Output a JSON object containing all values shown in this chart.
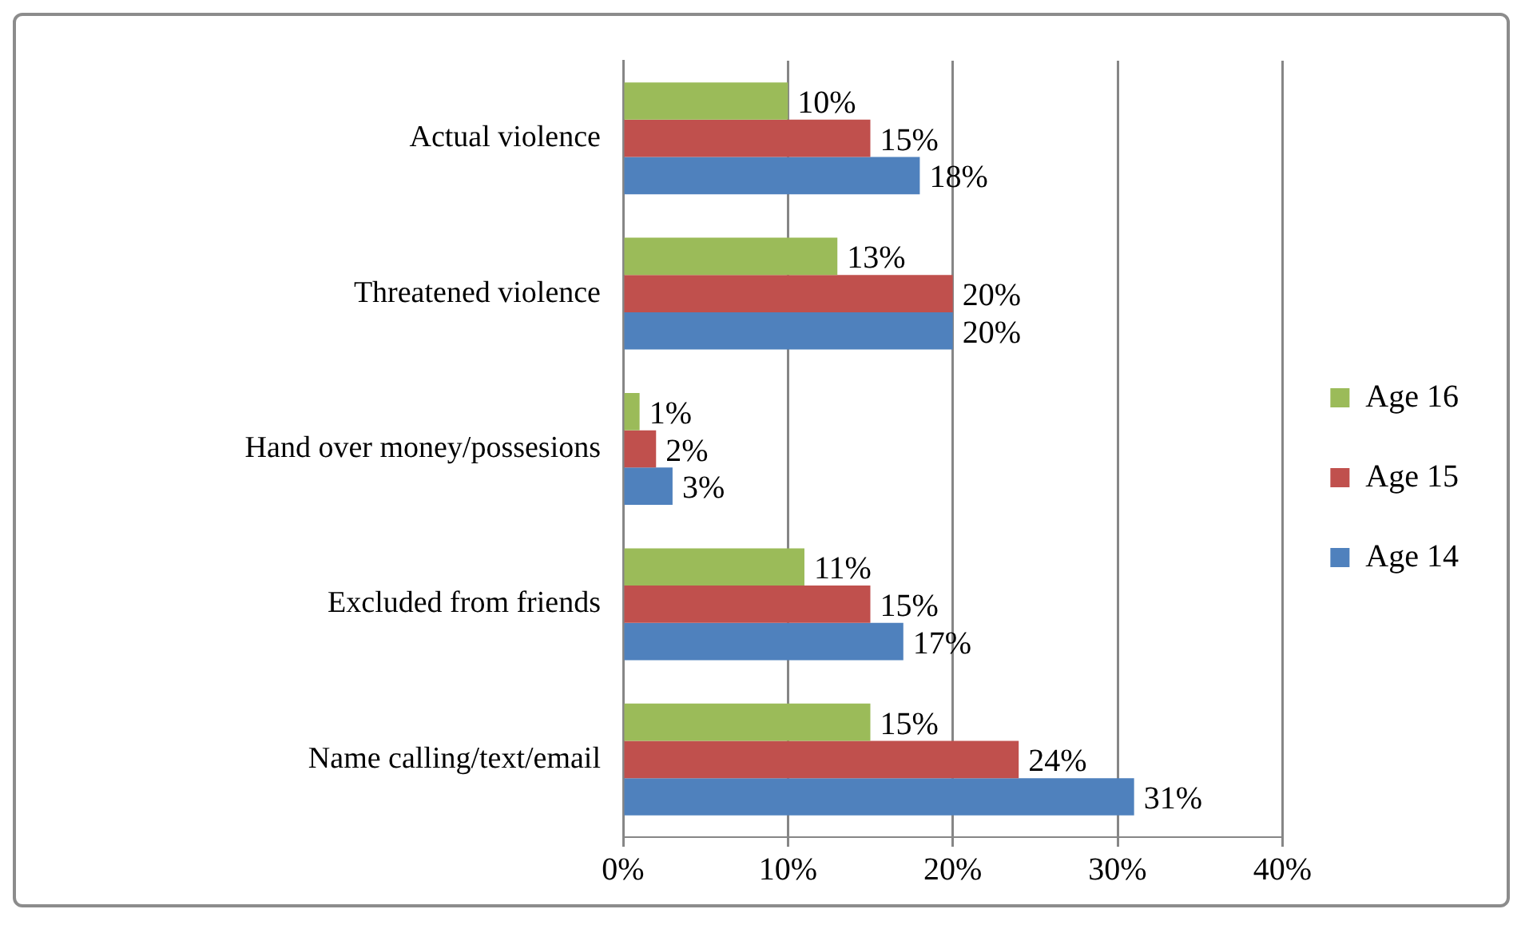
{
  "chart_data": {
    "type": "bar",
    "orientation": "horizontal",
    "categories": [
      "Actual violence",
      "Threatened violence",
      "Hand over money/possesions",
      "Excluded from friends",
      "Name calling/text/email"
    ],
    "series": [
      {
        "name": "Age 16",
        "color": "#9bbb59",
        "values": [
          10,
          13,
          1,
          11,
          15
        ],
        "value_labels": [
          "10%",
          "13%",
          "1%",
          "11%",
          "15%"
        ]
      },
      {
        "name": "Age 15",
        "color": "#c0504d",
        "values": [
          15,
          20,
          2,
          15,
          24
        ],
        "value_labels": [
          "15%",
          "20%",
          "2%",
          "15%",
          "24%"
        ]
      },
      {
        "name": "Age 14",
        "color": "#4f81bd",
        "values": [
          18,
          20,
          3,
          17,
          31
        ],
        "value_labels": [
          "18%",
          "20%",
          "3%",
          "17%",
          "31%"
        ]
      }
    ],
    "xlim": [
      0,
      40
    ],
    "xticks": [
      {
        "value": 0,
        "label": "0%"
      },
      {
        "value": 10,
        "label": "10%"
      },
      {
        "value": 20,
        "label": "20%"
      },
      {
        "value": 30,
        "label": "30%"
      },
      {
        "value": 40,
        "label": "40%"
      }
    ],
    "grid": "x",
    "legend": "right"
  }
}
